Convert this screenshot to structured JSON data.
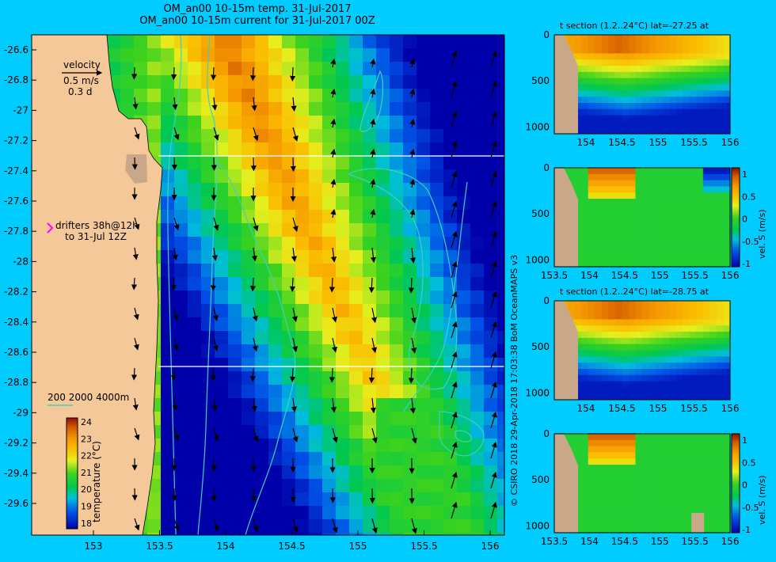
{
  "header": {
    "title_line1": "OM_an00 10-15m temp. 31-Jul-2017",
    "title_line2": "OM_an00 10-15m current for 31-Jul-2017 00Z"
  },
  "map": {
    "y_ticks": [
      "-26.6",
      "-26.8",
      "-27",
      "-27.2",
      "-27.4",
      "-27.6",
      "-27.8",
      "-28",
      "-28.2",
      "-28.4",
      "-28.6",
      "-28.8",
      "-29",
      "-29.2",
      "-29.4",
      "-29.6"
    ],
    "x_ticks": [
      "153",
      "153.5",
      "154",
      "154.5",
      "155",
      "155.5",
      "156"
    ],
    "velocity_label": "velocity",
    "velocity_scale": "0.5 m/s",
    "velocity_time": "0.3 d",
    "drifters_line1": "drifters 38h@12h",
    "drifters_line2": "to 31-Jul 12Z",
    "isobaths_label": "200  2000  4000m",
    "section_lines_lat": [
      "-27.25",
      "-28.75"
    ]
  },
  "colorbar": {
    "ticks": [
      "24",
      "23",
      "22",
      "21",
      "20",
      "19",
      "18"
    ],
    "label": "temperature (°C)",
    "range": [
      17.5,
      24
    ]
  },
  "panels": [
    {
      "title": "t section (1.2..24°C) lat=-27.25 at",
      "y_ticks": [
        "0",
        "500",
        "1000"
      ],
      "x_ticks": [
        "154",
        "154.5",
        "155",
        "155.5",
        "156"
      ],
      "kind": "temp"
    },
    {
      "title": "",
      "y_ticks": [
        "0",
        "500",
        "1000"
      ],
      "x_ticks": [
        "153.5",
        "154",
        "154.5",
        "155",
        "155.5",
        "156"
      ],
      "kind": "vel",
      "cbar_ticks": [
        "1",
        "0.5",
        "0",
        "-0.5",
        "-1"
      ],
      "cbar_label": "vel. S (m/s)"
    },
    {
      "title": "t section (1.2..24°C) lat=-28.75 at",
      "y_ticks": [
        "0",
        "500",
        "1000"
      ],
      "x_ticks": [
        "154",
        "154.5",
        "155",
        "155.5",
        "156"
      ],
      "kind": "temp"
    },
    {
      "title": "",
      "y_ticks": [
        "0",
        "500",
        "1000"
      ],
      "x_ticks": [
        "153.5",
        "154",
        "154.5",
        "155",
        "155.5",
        "156"
      ],
      "kind": "vel",
      "cbar_ticks": [
        "1",
        "0.5",
        "0",
        "-0.5",
        "-1"
      ],
      "cbar_label": "vel. S (m/s)"
    }
  ],
  "credit": "© CSIRO 2018  29-Apr-2018 17:03:38 BoM OceanMAPS v3",
  "colors": {
    "background": "#00ccff",
    "land": "#f5c89a",
    "land_section": "#c8a888",
    "contour": "#40d0c0"
  }
}
